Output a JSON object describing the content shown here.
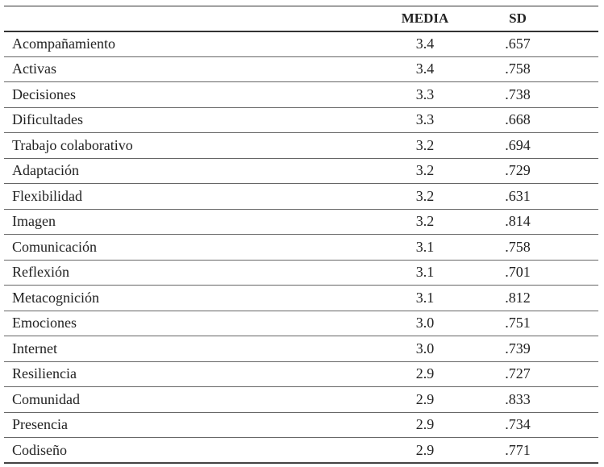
{
  "table": {
    "headers": [
      "",
      "MEDIA",
      "SD"
    ],
    "rows": [
      {
        "name": "Acompañamiento",
        "media": "3.4",
        "sd": ".657"
      },
      {
        "name": "Activas",
        "media": "3.4",
        "sd": ".758"
      },
      {
        "name": "Decisiones",
        "media": "3.3",
        "sd": ".738"
      },
      {
        "name": "Dificultades",
        "media": "3.3",
        "sd": ".668"
      },
      {
        "name": "Trabajo colaborativo",
        "media": "3.2",
        "sd": ".694"
      },
      {
        "name": "Adaptación",
        "media": "3.2",
        "sd": ".729"
      },
      {
        "name": "Flexibilidad",
        "media": "3.2",
        "sd": ".631"
      },
      {
        "name": "Imagen",
        "media": "3.2",
        "sd": ".814"
      },
      {
        "name": "Comunicación",
        "media": "3.1",
        "sd": ".758"
      },
      {
        "name": "Reflexión",
        "media": "3.1",
        "sd": ".701"
      },
      {
        "name": "Metacognición",
        "media": "3.1",
        "sd": ".812"
      },
      {
        "name": "Emociones",
        "media": "3.0",
        "sd": ".751"
      },
      {
        "name": "Internet",
        "media": "3.0",
        "sd": ".739"
      },
      {
        "name": "Resiliencia",
        "media": "2.9",
        "sd": ".727"
      },
      {
        "name": "Comunidad",
        "media": "2.9",
        "sd": ".833"
      },
      {
        "name": "Presencia",
        "media": "2.9",
        "sd": ".734"
      },
      {
        "name": "Codiseño",
        "media": "2.9",
        "sd": ".771"
      }
    ]
  }
}
